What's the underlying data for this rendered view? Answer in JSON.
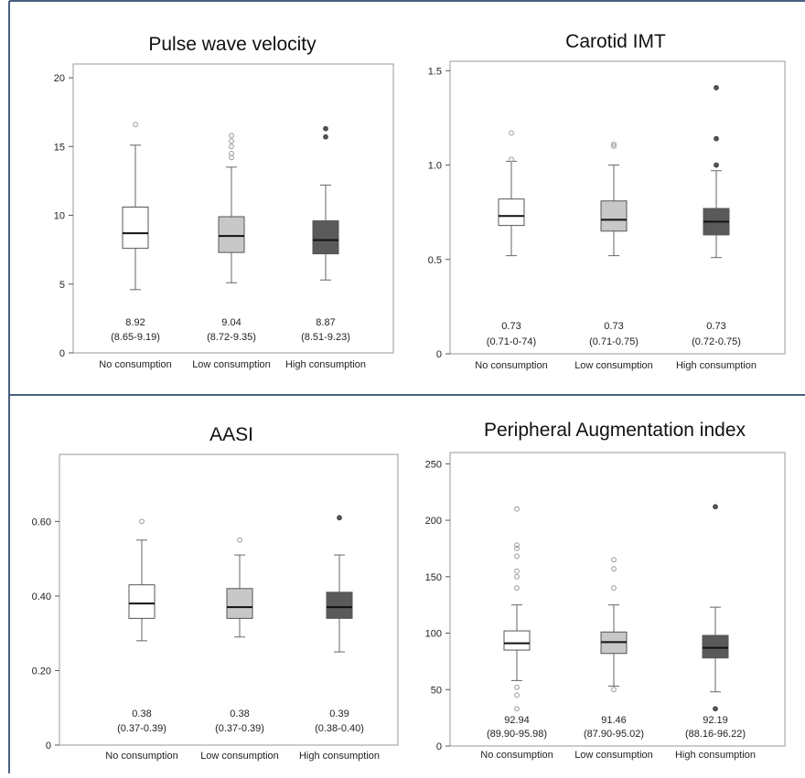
{
  "chart_data": [
    {
      "type": "boxplot",
      "title": "Pulse wave velocity",
      "ylim": [
        0,
        21
      ],
      "yticks": [
        0,
        5,
        10,
        15,
        20
      ],
      "categories": [
        "No consumption",
        "Low consumption",
        "High consumption"
      ],
      "fill_colors": [
        "#ffffff",
        "#c8c8c8",
        "#5a5a5a"
      ],
      "boxes": [
        {
          "whisker_low": 4.6,
          "q1": 7.6,
          "median": 8.7,
          "q3": 10.6,
          "whisker_high": 15.1,
          "outliers": [
            16.6
          ]
        },
        {
          "whisker_low": 5.1,
          "q1": 7.3,
          "median": 8.5,
          "q3": 9.9,
          "whisker_high": 13.5,
          "outliers": [
            14.2,
            14.5,
            15.0,
            15.4,
            15.8
          ]
        },
        {
          "whisker_low": 5.3,
          "q1": 7.2,
          "median": 8.2,
          "q3": 9.6,
          "whisker_high": 12.2,
          "outliers": [
            15.7,
            16.3
          ]
        }
      ],
      "stats": [
        {
          "mean": "8.92",
          "ci": "(8.65-9.19)"
        },
        {
          "mean": "9.04",
          "ci": "(8.72-9.35)"
        },
        {
          "mean": "8.87",
          "ci": "(8.51-9.23)"
        }
      ]
    },
    {
      "type": "boxplot",
      "title": "Carotid IMT",
      "ylim": [
        0,
        1.55
      ],
      "yticks": [
        "0",
        "0.5",
        "1.0",
        "1.5"
      ],
      "categories": [
        "No consumption",
        "Low consumption",
        "High consumption"
      ],
      "fill_colors": [
        "#ffffff",
        "#c8c8c8",
        "#5a5a5a"
      ],
      "boxes": [
        {
          "whisker_low": 0.52,
          "q1": 0.68,
          "median": 0.73,
          "q3": 0.82,
          "whisker_high": 1.02,
          "outliers": [
            1.03,
            1.17
          ]
        },
        {
          "whisker_low": 0.52,
          "q1": 0.65,
          "median": 0.71,
          "q3": 0.81,
          "whisker_high": 1.0,
          "outliers": [
            1.1,
            1.11
          ]
        },
        {
          "whisker_low": 0.51,
          "q1": 0.63,
          "median": 0.7,
          "q3": 0.77,
          "whisker_high": 0.97,
          "outliers": [
            1.0,
            1.14,
            1.41
          ]
        }
      ],
      "stats": [
        {
          "mean": "0.73",
          "ci": "(0.71-0-74)"
        },
        {
          "mean": "0.73",
          "ci": "(0.71-0.75)"
        },
        {
          "mean": "0.73",
          "ci": "(0.72-0.75)"
        }
      ]
    },
    {
      "type": "boxplot",
      "title": "AASI",
      "ylim": [
        0,
        0.78
      ],
      "yticks": [
        "0",
        "0.20",
        "0.40",
        "0.60"
      ],
      "categories": [
        "No consumption",
        "Low consumption",
        "High consumption"
      ],
      "fill_colors": [
        "#ffffff",
        "#c8c8c8",
        "#5a5a5a"
      ],
      "boxes": [
        {
          "whisker_low": 0.28,
          "q1": 0.34,
          "median": 0.38,
          "q3": 0.43,
          "whisker_high": 0.55,
          "outliers": [
            0.6
          ]
        },
        {
          "whisker_low": 0.29,
          "q1": 0.34,
          "median": 0.37,
          "q3": 0.42,
          "whisker_high": 0.51,
          "outliers": [
            0.55
          ]
        },
        {
          "whisker_low": 0.25,
          "q1": 0.34,
          "median": 0.37,
          "q3": 0.41,
          "whisker_high": 0.51,
          "outliers": [
            0.61
          ]
        }
      ],
      "stats": [
        {
          "mean": "0.38",
          "ci": "(0.37-0.39)"
        },
        {
          "mean": "0.38",
          "ci": "(0.37-0.39)"
        },
        {
          "mean": "0.39",
          "ci": "(0.38-0.40)"
        }
      ]
    },
    {
      "type": "boxplot",
      "title": "Peripheral Augmentation index",
      "ylim": [
        0,
        260
      ],
      "yticks": [
        "0",
        "50",
        "100",
        "150",
        "200",
        "250"
      ],
      "categories": [
        "No consumption",
        "Low consumption",
        "High consumption"
      ],
      "fill_colors": [
        "#ffffff",
        "#c8c8c8",
        "#5a5a5a"
      ],
      "boxes": [
        {
          "whisker_low": 58,
          "q1": 85,
          "median": 91,
          "q3": 102,
          "whisker_high": 125,
          "outliers": [
            33,
            45,
            52,
            140,
            150,
            155,
            168,
            175,
            178,
            210
          ]
        },
        {
          "whisker_low": 53,
          "q1": 82,
          "median": 92,
          "q3": 101,
          "whisker_high": 125,
          "outliers": [
            50,
            140,
            157,
            165
          ]
        },
        {
          "whisker_low": 48,
          "q1": 78,
          "median": 87,
          "q3": 98,
          "whisker_high": 123,
          "outliers": [
            33,
            212
          ]
        }
      ],
      "stats": [
        {
          "mean": "92.94",
          "ci": "(89.90-95.98)"
        },
        {
          "mean": "91.46",
          "ci": "(87.90-95.02)"
        },
        {
          "mean": "92.19",
          "ci": "(88.16-96.22)"
        }
      ]
    }
  ]
}
